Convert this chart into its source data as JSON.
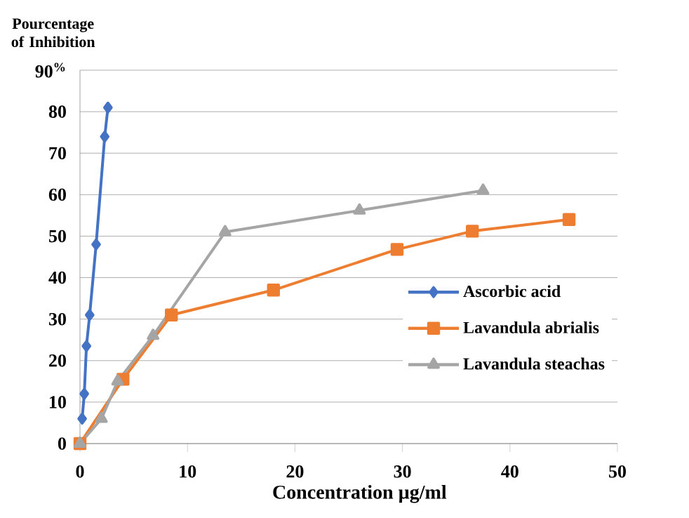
{
  "chart_data": {
    "type": "line",
    "xlabel": "Concentration µg/ml",
    "ylabel": "Pourcentage of Inhibition",
    "xlim": [
      0,
      50
    ],
    "xticks": [
      0,
      10,
      20,
      30,
      40,
      50
    ],
    "ylim": [
      0,
      90
    ],
    "yticks": [
      0,
      10,
      20,
      30,
      40,
      50,
      60,
      70,
      {
        "value": 90,
        "label": "90$^{%}$"
      },
      80
    ],
    "grid": "y",
    "legend": "right",
    "line_style": "solid",
    "series": [
      {
        "name": "Ascorbic acid",
        "color": "#4472c4",
        "marker": "diamond",
        "x": [
          0.2,
          0.4,
          0.6,
          0.9,
          1.5,
          2.3,
          2.6
        ],
        "values": [
          6,
          12,
          23.5,
          31,
          48,
          74,
          81
        ]
      },
      {
        "name": "Lavandula abrialis",
        "color": "#ed7d31",
        "marker": "square",
        "x": [
          0,
          4,
          8.5,
          18,
          29.5,
          36.5,
          45.5
        ],
        "values": [
          0,
          15.5,
          31,
          37,
          46.8,
          51.2,
          54
        ]
      },
      {
        "name": "Lavandula steachas",
        "color": "#a5a5a5",
        "marker": "triangle",
        "x": [
          0,
          2,
          3.5,
          6.8,
          13.5,
          26,
          37.5
        ],
        "values": [
          0,
          6,
          15,
          26,
          51,
          56.2,
          61
        ]
      }
    ]
  }
}
